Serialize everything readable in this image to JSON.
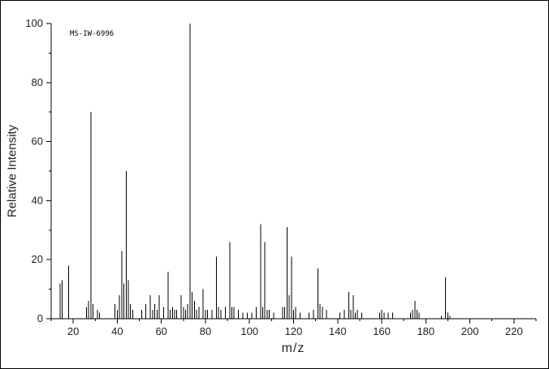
{
  "watermark": "MS-IW-6996",
  "chart_data": {
    "type": "bar",
    "title": "",
    "xlabel": "m/z",
    "ylabel": "Relative Intensity",
    "xlim": [
      10,
      230
    ],
    "ylim": [
      0,
      100
    ],
    "x_major_ticks": [
      20,
      40,
      60,
      80,
      100,
      120,
      140,
      160,
      180,
      200,
      220
    ],
    "x_minor_step": 10,
    "y_major_ticks": [
      0,
      20,
      40,
      60,
      80,
      100
    ],
    "y_minor_step": 10,
    "grid": false,
    "legend": false,
    "axis_color": "#000000",
    "peak_color": "#000000",
    "peaks": [
      [
        14,
        12
      ],
      [
        15,
        13
      ],
      [
        18,
        18
      ],
      [
        26,
        4
      ],
      [
        27,
        6
      ],
      [
        28,
        70
      ],
      [
        29,
        5
      ],
      [
        31,
        3
      ],
      [
        32,
        2
      ],
      [
        39,
        5
      ],
      [
        40,
        3
      ],
      [
        41,
        8
      ],
      [
        42,
        23
      ],
      [
        43,
        12
      ],
      [
        44,
        50
      ],
      [
        45,
        13
      ],
      [
        46,
        5
      ],
      [
        47,
        3
      ],
      [
        51,
        3
      ],
      [
        53,
        5
      ],
      [
        55,
        8
      ],
      [
        56,
        3
      ],
      [
        57,
        5
      ],
      [
        58,
        3
      ],
      [
        59,
        8
      ],
      [
        61,
        4
      ],
      [
        63,
        16
      ],
      [
        64,
        3
      ],
      [
        65,
        4
      ],
      [
        66,
        3
      ],
      [
        67,
        3
      ],
      [
        69,
        8
      ],
      [
        70,
        4
      ],
      [
        71,
        3
      ],
      [
        72,
        5
      ],
      [
        73,
        100
      ],
      [
        74,
        9
      ],
      [
        75,
        6
      ],
      [
        76,
        3
      ],
      [
        77,
        4
      ],
      [
        79,
        10
      ],
      [
        80,
        3
      ],
      [
        81,
        3
      ],
      [
        83,
        3
      ],
      [
        85,
        21
      ],
      [
        86,
        4
      ],
      [
        87,
        3
      ],
      [
        89,
        4
      ],
      [
        91,
        26
      ],
      [
        92,
        4
      ],
      [
        93,
        4
      ],
      [
        95,
        3
      ],
      [
        97,
        2
      ],
      [
        99,
        2
      ],
      [
        101,
        2
      ],
      [
        103,
        4
      ],
      [
        105,
        32
      ],
      [
        106,
        4
      ],
      [
        107,
        26
      ],
      [
        108,
        3
      ],
      [
        109,
        3
      ],
      [
        111,
        2
      ],
      [
        115,
        4
      ],
      [
        116,
        4
      ],
      [
        117,
        31
      ],
      [
        118,
        8
      ],
      [
        119,
        21
      ],
      [
        120,
        3
      ],
      [
        121,
        4
      ],
      [
        123,
        2
      ],
      [
        127,
        2
      ],
      [
        129,
        3
      ],
      [
        131,
        17
      ],
      [
        132,
        5
      ],
      [
        133,
        4
      ],
      [
        135,
        3
      ],
      [
        141,
        2
      ],
      [
        143,
        3
      ],
      [
        145,
        9
      ],
      [
        146,
        3
      ],
      [
        147,
        8
      ],
      [
        148,
        2
      ],
      [
        149,
        3
      ],
      [
        151,
        2
      ],
      [
        159,
        2
      ],
      [
        160,
        3
      ],
      [
        161,
        2
      ],
      [
        163,
        2
      ],
      [
        165,
        2
      ],
      [
        173,
        2
      ],
      [
        174,
        3
      ],
      [
        175,
        6
      ],
      [
        176,
        3
      ],
      [
        177,
        2
      ],
      [
        187,
        1
      ],
      [
        189,
        14
      ],
      [
        190,
        2
      ],
      [
        191,
        1
      ]
    ]
  }
}
